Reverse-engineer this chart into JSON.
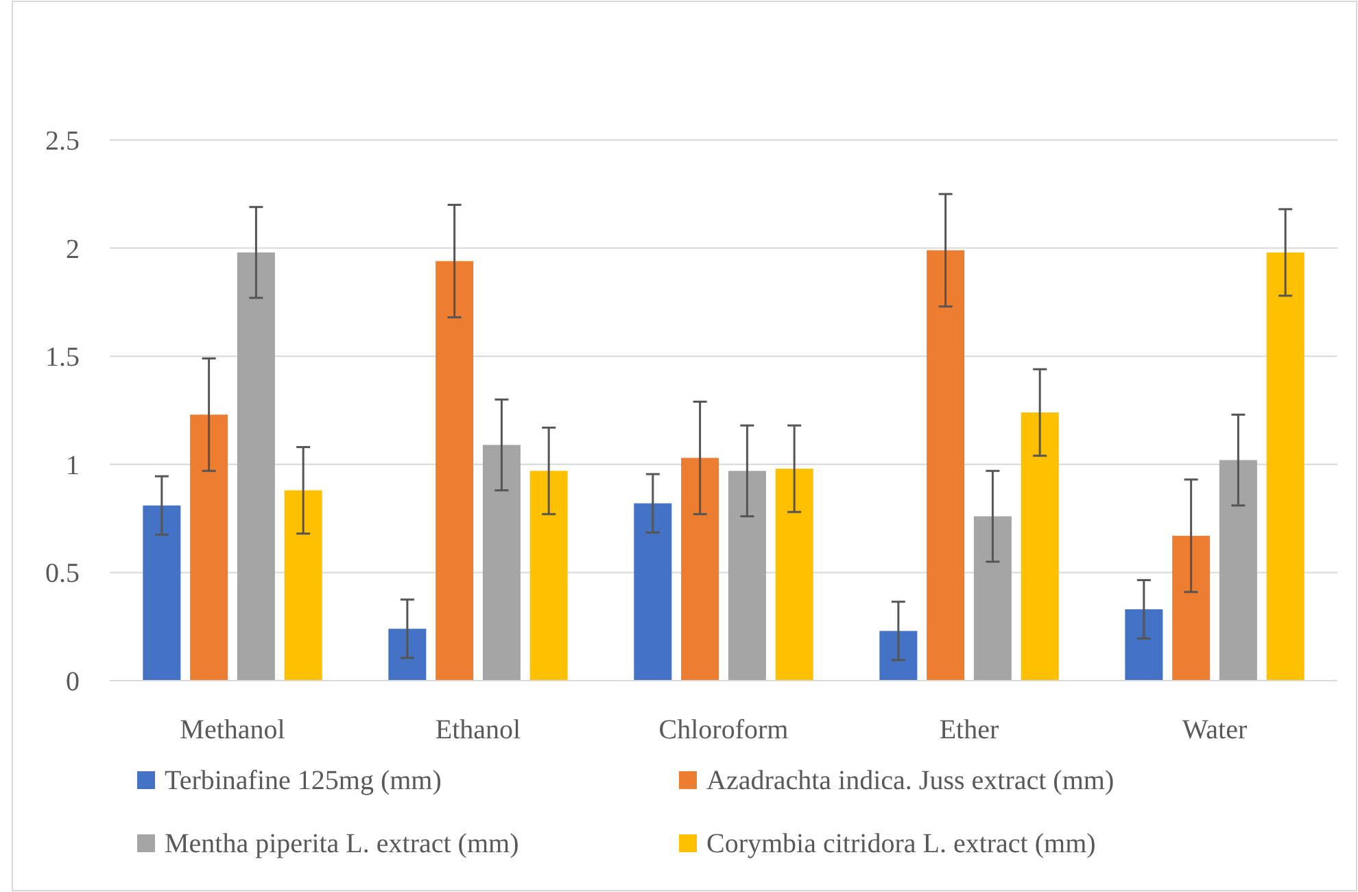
{
  "chart_data": {
    "type": "bar",
    "categories": [
      "Methanol",
      "Ethanol",
      "Chloroform",
      "Ether",
      "Water"
    ],
    "series": [
      {
        "name": "Terbinafine 125mg (mm)",
        "color": "#4472c4",
        "values": [
          0.81,
          0.24,
          0.82,
          0.23,
          0.33
        ],
        "errors": [
          0.135,
          0.135,
          0.135,
          0.135,
          0.135
        ]
      },
      {
        "name": "Azadrachta indica. Juss extract (mm)",
        "color": "#ed7d31",
        "values": [
          1.23,
          1.94,
          1.03,
          1.99,
          0.67
        ],
        "errors": [
          0.26,
          0.26,
          0.26,
          0.26,
          0.26
        ]
      },
      {
        "name": "Mentha piperita L. extract (mm)",
        "color": "#a5a5a5",
        "values": [
          1.98,
          1.09,
          0.97,
          0.76,
          1.02
        ],
        "errors": [
          0.21,
          0.21,
          0.21,
          0.21,
          0.21
        ]
      },
      {
        "name": "Corymbia citridora L. extract (mm)",
        "color": "#ffc000",
        "values": [
          0.88,
          0.97,
          0.98,
          1.24,
          1.98
        ],
        "errors": [
          0.2,
          0.2,
          0.2,
          0.2,
          0.2
        ]
      }
    ],
    "ylim": [
      0,
      2.5
    ],
    "yticks": [
      0,
      0.5,
      1,
      1.5,
      2,
      2.5
    ],
    "grid": "y",
    "legend": "bottom"
  }
}
